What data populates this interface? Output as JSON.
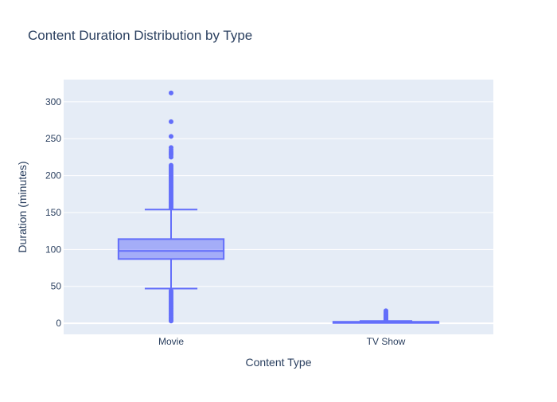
{
  "chart_data": {
    "type": "box",
    "title": "Content Duration Distribution by Type",
    "xlabel": "Content Type",
    "ylabel": "Duration (minutes)",
    "categories": [
      "Movie",
      "TV Show"
    ],
    "ylim": [
      -15,
      330
    ],
    "yticks": [
      0,
      50,
      100,
      150,
      200,
      250,
      300
    ],
    "grid": true,
    "boxes": [
      {
        "category": "Movie",
        "lower_fence": 47,
        "q1": 87,
        "median": 98,
        "q3": 114,
        "upper_fence": 154,
        "outliers": [
          312,
          273,
          253,
          238,
          235,
          232,
          230,
          228,
          225,
          214,
          212,
          210,
          208,
          206,
          204,
          202,
          200,
          198,
          196,
          194,
          192,
          190,
          188,
          186,
          184,
          182,
          180,
          178,
          176,
          174,
          172,
          170,
          168,
          166,
          164,
          162,
          160,
          158,
          156,
          44,
          42,
          40,
          38,
          36,
          34,
          32,
          30,
          28,
          26,
          24,
          22,
          20,
          18,
          16,
          14,
          12,
          10,
          8,
          6,
          4,
          3
        ]
      },
      {
        "category": "TV Show",
        "lower_fence": 1,
        "q1": 1,
        "median": 1,
        "q3": 2,
        "upper_fence": 3,
        "outliers": [
          4,
          5,
          6,
          7,
          8,
          9,
          10,
          11,
          12,
          13,
          15,
          17
        ]
      }
    ],
    "colors": {
      "box_line": "#636efa",
      "box_fill": "rgba(99,110,250,0.5)",
      "plot_bg": "#e5ecf6",
      "grid": "#ffffff",
      "text": "#2a3f5f"
    }
  }
}
